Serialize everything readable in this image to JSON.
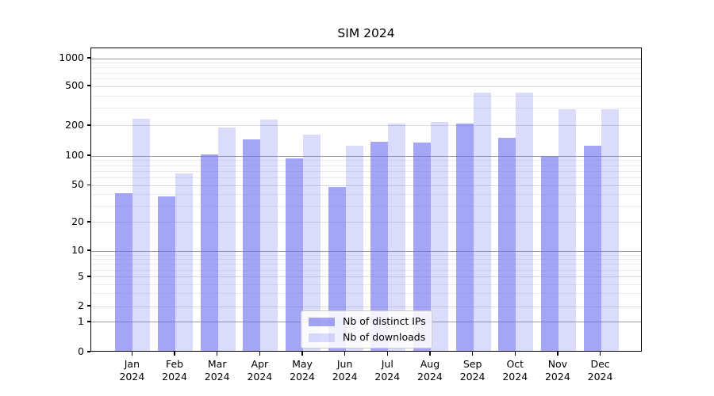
{
  "title": "SIM 2024",
  "chart_data": {
    "type": "bar",
    "title": "SIM 2024",
    "categories": [
      "Jan 2024",
      "Feb 2024",
      "Mar 2024",
      "Apr 2024",
      "May 2024",
      "Jun 2024",
      "Jul 2024",
      "Aug 2024",
      "Sep 2024",
      "Oct 2024",
      "Nov 2024",
      "Dec 2024"
    ],
    "series": [
      {
        "name": "Nb of distinct IPs",
        "color": "rgba(110,110,240,0.62)",
        "values": [
          40,
          37,
          100,
          142,
          91,
          47,
          134,
          131,
          203,
          146,
          96,
          122
        ]
      },
      {
        "name": "Nb of downloads",
        "color": "rgba(110,110,240,0.25)",
        "values": [
          229,
          64,
          187,
          224,
          158,
          122,
          204,
          212,
          415,
          415,
          283,
          285
        ]
      }
    ],
    "xlabel": "",
    "ylabel": "",
    "y_axis": {
      "scale": "symlog",
      "ticks": [
        0,
        1,
        2,
        5,
        10,
        20,
        50,
        100,
        200,
        500,
        1000
      ],
      "anchors": [
        [
          0,
          0.0
        ],
        [
          1,
          0.099
        ],
        [
          2,
          0.151
        ],
        [
          5,
          0.2474
        ],
        [
          10,
          0.3333
        ],
        [
          20,
          0.4271
        ],
        [
          50,
          0.5487
        ],
        [
          100,
          0.6458
        ],
        [
          200,
          0.7448
        ],
        [
          500,
          0.875
        ],
        [
          1000,
          0.9661
        ]
      ],
      "grid": true
    },
    "legend_position": "lower center",
    "grid_colors": {
      "major": "#9c9c9c",
      "mid": "#dddddd",
      "minor": "#ececec"
    }
  }
}
